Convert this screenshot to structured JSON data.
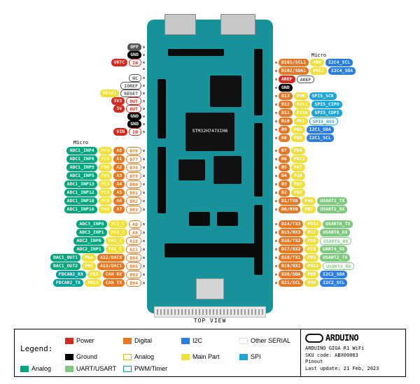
{
  "colors": {
    "power": "#d52b1e",
    "ground": "#000000",
    "digital": "#e87722",
    "analog_out": "#f7b500",
    "mainpart": "#f2e03a",
    "i2c": "#2a7de1",
    "spi": "#1ba5d8",
    "uart": "#7fc97f",
    "otherserial": "#d9e6f2",
    "pwm": "#00a19a",
    "analog": "#00a77d",
    "grey": "#555"
  },
  "board": {
    "mcu_label": "STM32H747XIH6",
    "view": "TOP VIEW"
  },
  "section_labels": {
    "left_micro": "Micro",
    "right_micro": "Micro"
  },
  "left_top": [
    [
      [
        "OFF",
        "grey"
      ]
    ],
    [
      [
        "GND",
        "ground"
      ]
    ],
    [
      [
        "VRTC",
        "power"
      ],
      [
        "IN",
        "power",
        "o"
      ]
    ],
    [
      []
    ],
    [
      [
        "NC",
        "grey",
        "o"
      ]
    ],
    [
      [
        "IOREF",
        "grey",
        "o"
      ]
    ],
    [
      [
        "RESET",
        "mainpart"
      ],
      [
        "RESET",
        "grey",
        "o"
      ]
    ],
    [
      [
        "3V3",
        "power"
      ],
      [
        "OUT",
        "power",
        "o"
      ]
    ],
    [
      [
        "5V",
        "power"
      ],
      [
        "OUT",
        "power",
        "o"
      ]
    ],
    [
      [
        "GND",
        "ground"
      ]
    ],
    [
      [
        "GND",
        "ground"
      ]
    ],
    [
      [
        "VIN",
        "power"
      ],
      [
        "IN",
        "power",
        "o"
      ]
    ]
  ],
  "left_block": [
    [
      [
        "ADC1_INP4",
        "analog"
      ],
      [
        "PC4",
        "mainpart"
      ],
      [
        "A0",
        "digital"
      ],
      [
        "D76",
        "digital",
        "o"
      ]
    ],
    [
      [
        "ADC1_INP8",
        "analog"
      ],
      [
        "PC5",
        "mainpart"
      ],
      [
        "A1",
        "digital"
      ],
      [
        "D77",
        "digital",
        "o"
      ]
    ],
    [
      [
        "ADC1_INP9",
        "analog"
      ],
      [
        "PB0",
        "mainpart"
      ],
      [
        "A2",
        "digital"
      ],
      [
        "D78",
        "digital",
        "o"
      ]
    ],
    [
      [
        "ADC1_INP5",
        "analog"
      ],
      [
        "PB1",
        "mainpart"
      ],
      [
        "A3",
        "digital"
      ],
      [
        "D79",
        "digital",
        "o"
      ]
    ],
    [
      [
        "ADC1_INP13",
        "analog"
      ],
      [
        "PC3",
        "mainpart"
      ],
      [
        "A4",
        "digital"
      ],
      [
        "D80",
        "digital",
        "o"
      ]
    ],
    [
      [
        "ADC1_INP12",
        "analog"
      ],
      [
        "PC2",
        "mainpart"
      ],
      [
        "A5",
        "digital"
      ],
      [
        "D81",
        "digital",
        "o"
      ]
    ],
    [
      [
        "ADC1_INP10",
        "analog"
      ],
      [
        "PC0",
        "mainpart"
      ],
      [
        "A6",
        "digital"
      ],
      [
        "D82",
        "digital",
        "o"
      ]
    ],
    [
      [
        "ADC1_INP16",
        "analog"
      ],
      [
        "PA0",
        "mainpart"
      ],
      [
        "A7",
        "digital"
      ],
      [
        "D83",
        "digital",
        "o"
      ]
    ]
  ],
  "left_block2": [
    [
      [
        "ADC3_INP0",
        "analog"
      ],
      [
        "PC2_C",
        "mainpart"
      ],
      [
        "A8",
        "digital",
        "o"
      ]
    ],
    [
      [
        "ADC3_INP1",
        "analog"
      ],
      [
        "PC3_C",
        "mainpart"
      ],
      [
        "A9",
        "digital",
        "o"
      ]
    ],
    [
      [
        "ADC2_INP0",
        "analog"
      ],
      [
        "PA1_C",
        "mainpart"
      ],
      [
        "A10",
        "digital",
        "o"
      ]
    ],
    [
      [
        "ADC2_INP1",
        "analog"
      ],
      [
        "PA0_C",
        "mainpart"
      ],
      [
        "A11",
        "digital",
        "o"
      ]
    ],
    [
      [
        "DAC1_OUT1",
        "analog"
      ],
      [
        "PA4",
        "mainpart"
      ],
      [
        "A12/DAC0",
        "digital"
      ],
      [
        "D84",
        "digital",
        "o"
      ]
    ],
    [
      [
        "DAC1_OUT2",
        "analog"
      ],
      [
        "PA5",
        "mainpart"
      ],
      [
        "A13/DAC1",
        "digital"
      ],
      [
        "D85",
        "digital",
        "o"
      ]
    ],
    [
      [
        "FDCAN2_RX",
        "pwm"
      ],
      [
        "PB5",
        "mainpart"
      ],
      [
        "CAN RX",
        "digital"
      ],
      [
        "D93",
        "digital",
        "o"
      ]
    ],
    [
      [
        "FDCAN2_TX",
        "pwm"
      ],
      [
        "PB13",
        "mainpart"
      ],
      [
        "CAN TX",
        "digital"
      ],
      [
        "D94",
        "digital",
        "o"
      ]
    ]
  ],
  "right_top": [
    [
      [
        "D101/SCL1",
        "digital"
      ],
      [
        "PB6",
        "mainpart"
      ],
      [
        "I2C4_SCL",
        "i2c"
      ]
    ],
    [
      [
        "D102/SDA1",
        "digital"
      ],
      [
        "PH12",
        "mainpart"
      ],
      [
        "I2C4_SDA",
        "i2c"
      ]
    ],
    [
      [
        "AREF",
        "power"
      ],
      [
        "AREF",
        "grey",
        "o"
      ]
    ],
    [
      [
        "GND",
        "ground"
      ]
    ],
    [
      [
        "D13",
        "digital"
      ],
      [
        "PH6",
        "mainpart"
      ],
      [
        "SPI5_SCK",
        "spi"
      ]
    ],
    [
      [
        "D12",
        "digital"
      ],
      [
        "PJ11",
        "mainpart"
      ],
      [
        "SPI5_CIPO",
        "spi"
      ]
    ],
    [
      [
        "D11",
        "digital"
      ],
      [
        "PJ10",
        "mainpart"
      ],
      [
        "SPI5_COPI",
        "spi"
      ]
    ],
    [
      [
        "D10",
        "digital"
      ],
      [
        "PK1",
        "mainpart"
      ],
      [
        "SPI5_NSS",
        "spi",
        "o"
      ]
    ],
    [
      [
        "D9",
        "digital"
      ],
      [
        "PB8",
        "mainpart"
      ],
      [
        "I2C1_SDA",
        "i2c"
      ]
    ],
    [
      [
        "D8",
        "digital"
      ],
      [
        "PB8",
        "mainpart"
      ],
      [
        "I2C1_SCL",
        "i2c"
      ]
    ]
  ],
  "right_mid": [
    [
      [
        "D7",
        "digital"
      ],
      [
        "PB4",
        "mainpart"
      ]
    ],
    [
      [
        "D6",
        "digital"
      ],
      [
        "PD13",
        "mainpart"
      ]
    ],
    [
      [
        "D5",
        "digital"
      ],
      [
        "PA7",
        "mainpart"
      ]
    ],
    [
      [
        "D4",
        "digital"
      ],
      [
        "PJ8",
        "mainpart"
      ]
    ],
    [
      [
        "D3",
        "digital"
      ],
      [
        "PG7",
        "mainpart"
      ]
    ],
    [
      [
        "D2",
        "digital"
      ],
      [
        "PA3",
        "mainpart"
      ]
    ],
    [
      [
        "D1/TX0",
        "digital"
      ],
      [
        "PA9",
        "mainpart"
      ],
      [
        "USART1_TX",
        "uart"
      ]
    ],
    [
      [
        "D0/RX0",
        "digital"
      ],
      [
        "PB7",
        "mainpart"
      ],
      [
        "USART1_RX",
        "uart"
      ]
    ]
  ],
  "right_bot": [
    [
      [
        "D14/TX3",
        "digital"
      ],
      [
        "PG14",
        "mainpart"
      ],
      [
        "USART6_TX",
        "uart"
      ]
    ],
    [
      [
        "D15/RX3",
        "digital"
      ],
      [
        "PC7",
        "mainpart"
      ],
      [
        "USART6_RX",
        "uart"
      ]
    ],
    [
      [
        "D16/TX2",
        "digital"
      ],
      [
        "PC6",
        "mainpart"
      ],
      [
        "USART6_RX",
        "uart",
        "o"
      ]
    ],
    [
      [
        "D17/RX2",
        "digital"
      ],
      [
        "PI9",
        "mainpart"
      ],
      [
        "UART4_RX",
        "uart"
      ]
    ],
    [
      [
        "D18/TX1",
        "digital"
      ],
      [
        "PD5",
        "mainpart"
      ],
      [
        "USART2_TX",
        "uart"
      ]
    ],
    [
      [
        "D19/RX1",
        "digital"
      ],
      [
        "PB12",
        "mainpart"
      ],
      [
        "USART2_RX",
        "uart",
        "o"
      ]
    ],
    [
      [
        "D20/SDA",
        "digital"
      ],
      [
        "PD9",
        "mainpart"
      ],
      [
        "I2C2_SDA",
        "i2c"
      ]
    ],
    [
      [
        "D21/SCL",
        "digital"
      ],
      [
        "PH4",
        "mainpart"
      ],
      [
        "I2C2_SCL",
        "i2c"
      ]
    ]
  ],
  "legend": {
    "title": "Legend:",
    "items": [
      {
        "label": "Power",
        "c": "power"
      },
      {
        "label": "Digital",
        "c": "digital"
      },
      {
        "label": "I2C",
        "c": "i2c"
      },
      {
        "label": "Other SERIAL",
        "c": "otherserial",
        "o": true
      },
      {
        "label": "Ground",
        "c": "ground"
      },
      {
        "label": "Analog",
        "c": "analog_out",
        "o": true
      },
      {
        "label": "Main Part",
        "c": "mainpart"
      },
      {
        "label": "SPI",
        "c": "spi"
      },
      {
        "label": "Analog",
        "c": "analog"
      },
      {
        "label": "UART/USART",
        "c": "uart"
      },
      {
        "label": "PWM/Timer",
        "c": "pwm",
        "o": true
      }
    ]
  },
  "info": {
    "brand": "ARDUINO",
    "product": "ARDUINO GIGA R1 WiFi",
    "sku": "SKU code: ABX00063",
    "type": "Pinout",
    "updated": "Last update: 21 Feb, 2023"
  }
}
